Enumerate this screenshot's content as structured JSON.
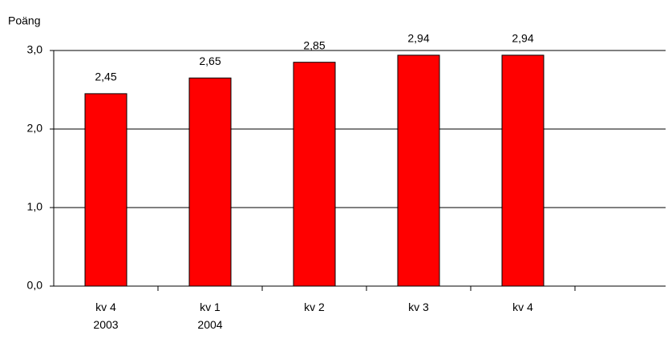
{
  "chart_data": {
    "type": "bar",
    "y_label": "Poäng",
    "categories": [
      "kv 4\n2003",
      "kv 1\n2004",
      "kv 2",
      "kv 3",
      "kv 4",
      null
    ],
    "values": [
      2.45,
      2.65,
      2.85,
      2.94,
      2.94,
      null
    ],
    "value_labels": [
      "2,45",
      "2,65",
      "2,85",
      "2,94",
      "2,94",
      null
    ],
    "color": "#ff0000",
    "ylim": [
      0,
      3
    ],
    "yticks": [
      {
        "value": 0,
        "label": "0,0"
      },
      {
        "value": 1,
        "label": "1,0"
      },
      {
        "value": 2,
        "label": "2,0"
      },
      {
        "value": 3,
        "label": "3,0"
      }
    ],
    "grid": true
  }
}
